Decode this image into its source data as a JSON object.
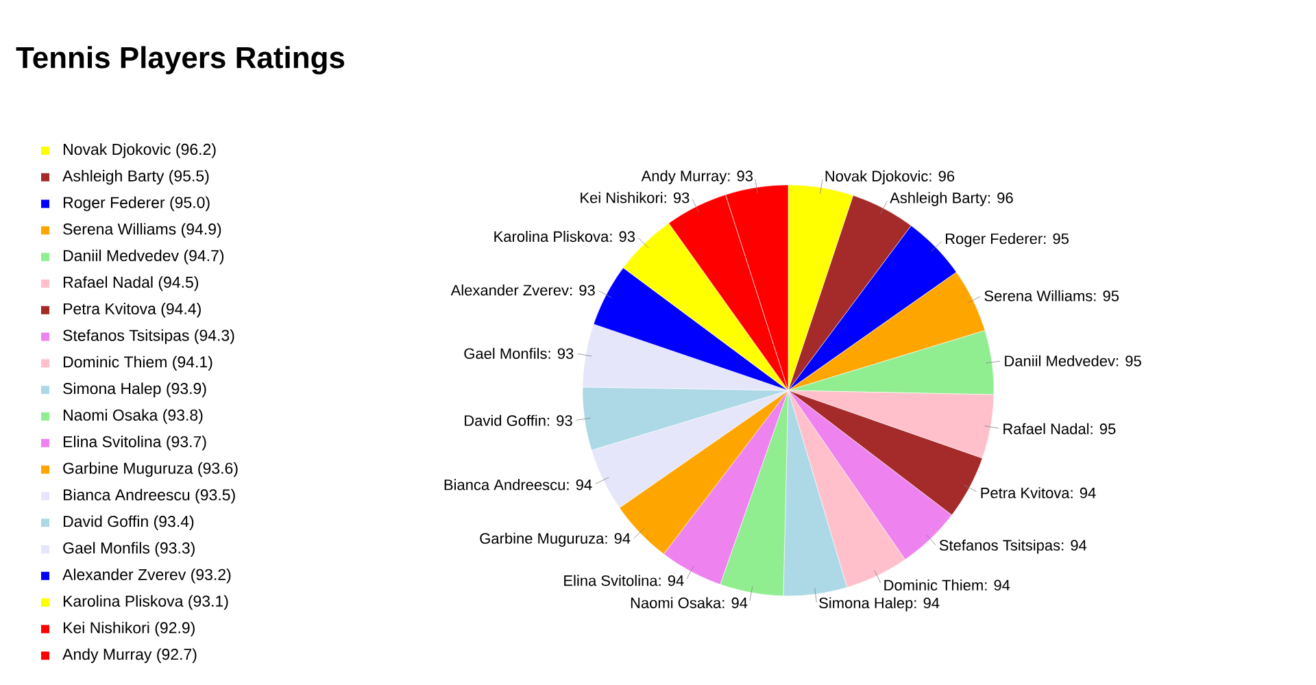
{
  "chart_data": {
    "type": "pie",
    "title": "Tennis Players Ratings",
    "categories": [
      "Novak Djokovic (96.2)",
      "Ashleigh Barty (95.5)",
      "Roger Federer (95.0)",
      "Serena Williams (94.9)",
      "Daniil Medvedev (94.7)",
      "Rafael Nadal (94.5)",
      "Petra Kvitova (94.4)",
      "Stefanos Tsitsipas (94.3)",
      "Dominic Thiem (94.1)",
      "Simona Halep (93.9)",
      "Naomi Osaka (93.8)",
      "Elina Svitolina (93.7)",
      "Garbine Muguruza (93.6)",
      "Bianca Andreescu (93.5)",
      "David Goffin (93.4)",
      "Gael Monfils (93.3)",
      "Alexander Zverev (93.2)",
      "Karolina Pliskova (93.1)",
      "Kei Nishikori (92.9)",
      "Andy Murray (92.7)"
    ],
    "values": [
      96.2,
      95.5,
      95.0,
      94.9,
      94.7,
      94.5,
      94.4,
      94.3,
      94.1,
      93.9,
      93.8,
      93.7,
      93.6,
      93.5,
      93.4,
      93.3,
      93.2,
      93.1,
      92.9,
      92.7
    ],
    "value_labels": [
      "Novak Djokovic: 96",
      "Ashleigh Barty: 96",
      "Roger Federer: 95",
      "Serena Williams: 95",
      "Daniil Medvedev: 95",
      "Rafael Nadal: 95",
      "Petra Kvitova: 94",
      "Stefanos Tsitsipas: 94",
      "Dominic Thiem: 94",
      "Simona Halep: 94",
      "Naomi Osaka: 94",
      "Elina Svitolina: 94",
      "Garbine Muguruza: 94",
      "Bianca Andreescu: 94",
      "David Goffin: 93",
      "Gael Monfils: 93",
      "Alexander Zverev: 93",
      "Karolina Pliskova: 93",
      "Kei Nishikori: 93",
      "Andy Murray: 93"
    ],
    "colors": [
      "#ffff00",
      "#a52a2a",
      "#0000ff",
      "#ffa500",
      "#90ee90",
      "#ffc0cb",
      "#a52a2a",
      "#ee82ee",
      "#ffc0cb",
      "#add8e6",
      "#90ee90",
      "#ee82ee",
      "#ffa500",
      "#e6e6fa",
      "#add8e6",
      "#e6e6fa",
      "#0000ff",
      "#ffff00",
      "#ff0000",
      "#ff0000"
    ],
    "legend": "left"
  }
}
